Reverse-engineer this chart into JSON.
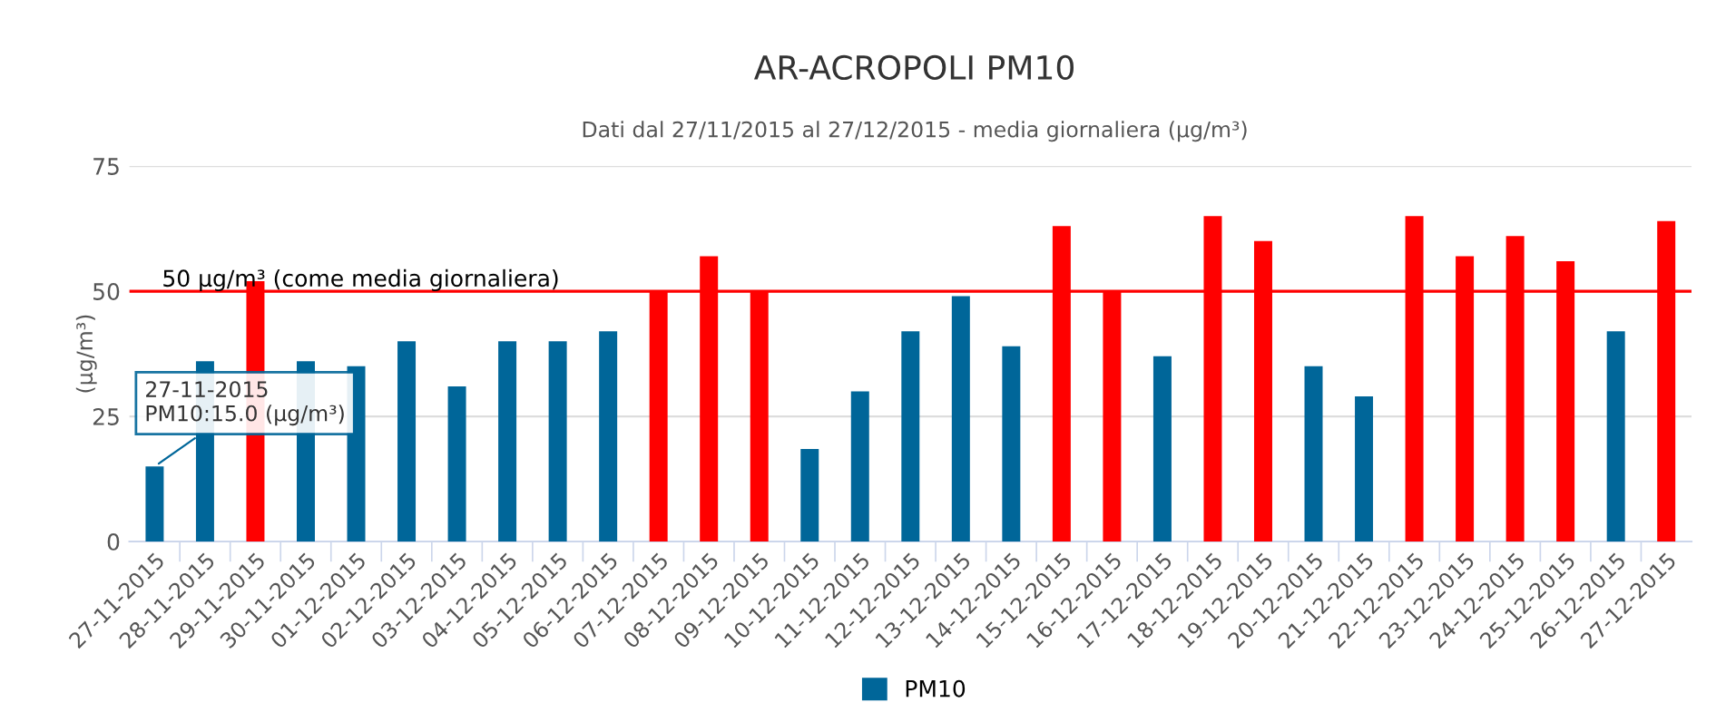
{
  "chart_data": {
    "type": "bar",
    "title": "AR-ACROPOLI PM10",
    "subtitle": "Dati dal 27/11/2015 al 27/12/2015 - media giornaliera (µg/m³)",
    "ylabel": "(µg/m³)",
    "categories": [
      "27-11-2015",
      "28-11-2015",
      "29-11-2015",
      "30-11-2015",
      "01-12-2015",
      "02-12-2015",
      "03-12-2015",
      "04-12-2015",
      "05-12-2015",
      "06-12-2015",
      "07-12-2015",
      "08-12-2015",
      "09-12-2015",
      "10-12-2015",
      "11-12-2015",
      "12-12-2015",
      "13-12-2015",
      "14-12-2015",
      "15-12-2015",
      "16-12-2015",
      "17-12-2015",
      "18-12-2015",
      "19-12-2015",
      "20-12-2015",
      "21-12-2015",
      "22-12-2015",
      "23-12-2015",
      "24-12-2015",
      "25-12-2015",
      "26-12-2015",
      "27-12-2015"
    ],
    "series": [
      {
        "name": "PM10",
        "color": "#006699",
        "values": [
          15.0,
          36,
          52,
          36,
          35,
          40,
          31,
          40,
          40,
          42,
          50,
          57,
          50,
          18.5,
          30,
          42,
          49,
          39,
          63,
          50,
          37,
          65,
          60,
          35,
          29,
          65,
          57,
          61,
          56,
          42,
          64
        ],
        "colors": [
          "#006699",
          "#006699",
          "#ff0000",
          "#006699",
          "#006699",
          "#006699",
          "#006699",
          "#006699",
          "#006699",
          "#006699",
          "#ff0000",
          "#ff0000",
          "#ff0000",
          "#006699",
          "#006699",
          "#006699",
          "#006699",
          "#006699",
          "#ff0000",
          "#ff0000",
          "#006699",
          "#ff0000",
          "#ff0000",
          "#006699",
          "#006699",
          "#ff0000",
          "#ff0000",
          "#ff0000",
          "#ff0000",
          "#006699",
          "#ff0000"
        ]
      }
    ],
    "ylim": [
      0,
      75
    ],
    "yticks": [
      0,
      25,
      50,
      75
    ],
    "grid": "y",
    "legend": "bottom",
    "ref_lines": [
      {
        "axis": "y",
        "value": 50,
        "label": "50 µg/m³ (come media giornaliera)",
        "color": "#ff0000"
      }
    ],
    "annotations": [
      {
        "text": "27-11-2015\nPM10:15.0 (µg/m³)",
        "x": "27-11-2015",
        "y": 15.0
      }
    ]
  }
}
